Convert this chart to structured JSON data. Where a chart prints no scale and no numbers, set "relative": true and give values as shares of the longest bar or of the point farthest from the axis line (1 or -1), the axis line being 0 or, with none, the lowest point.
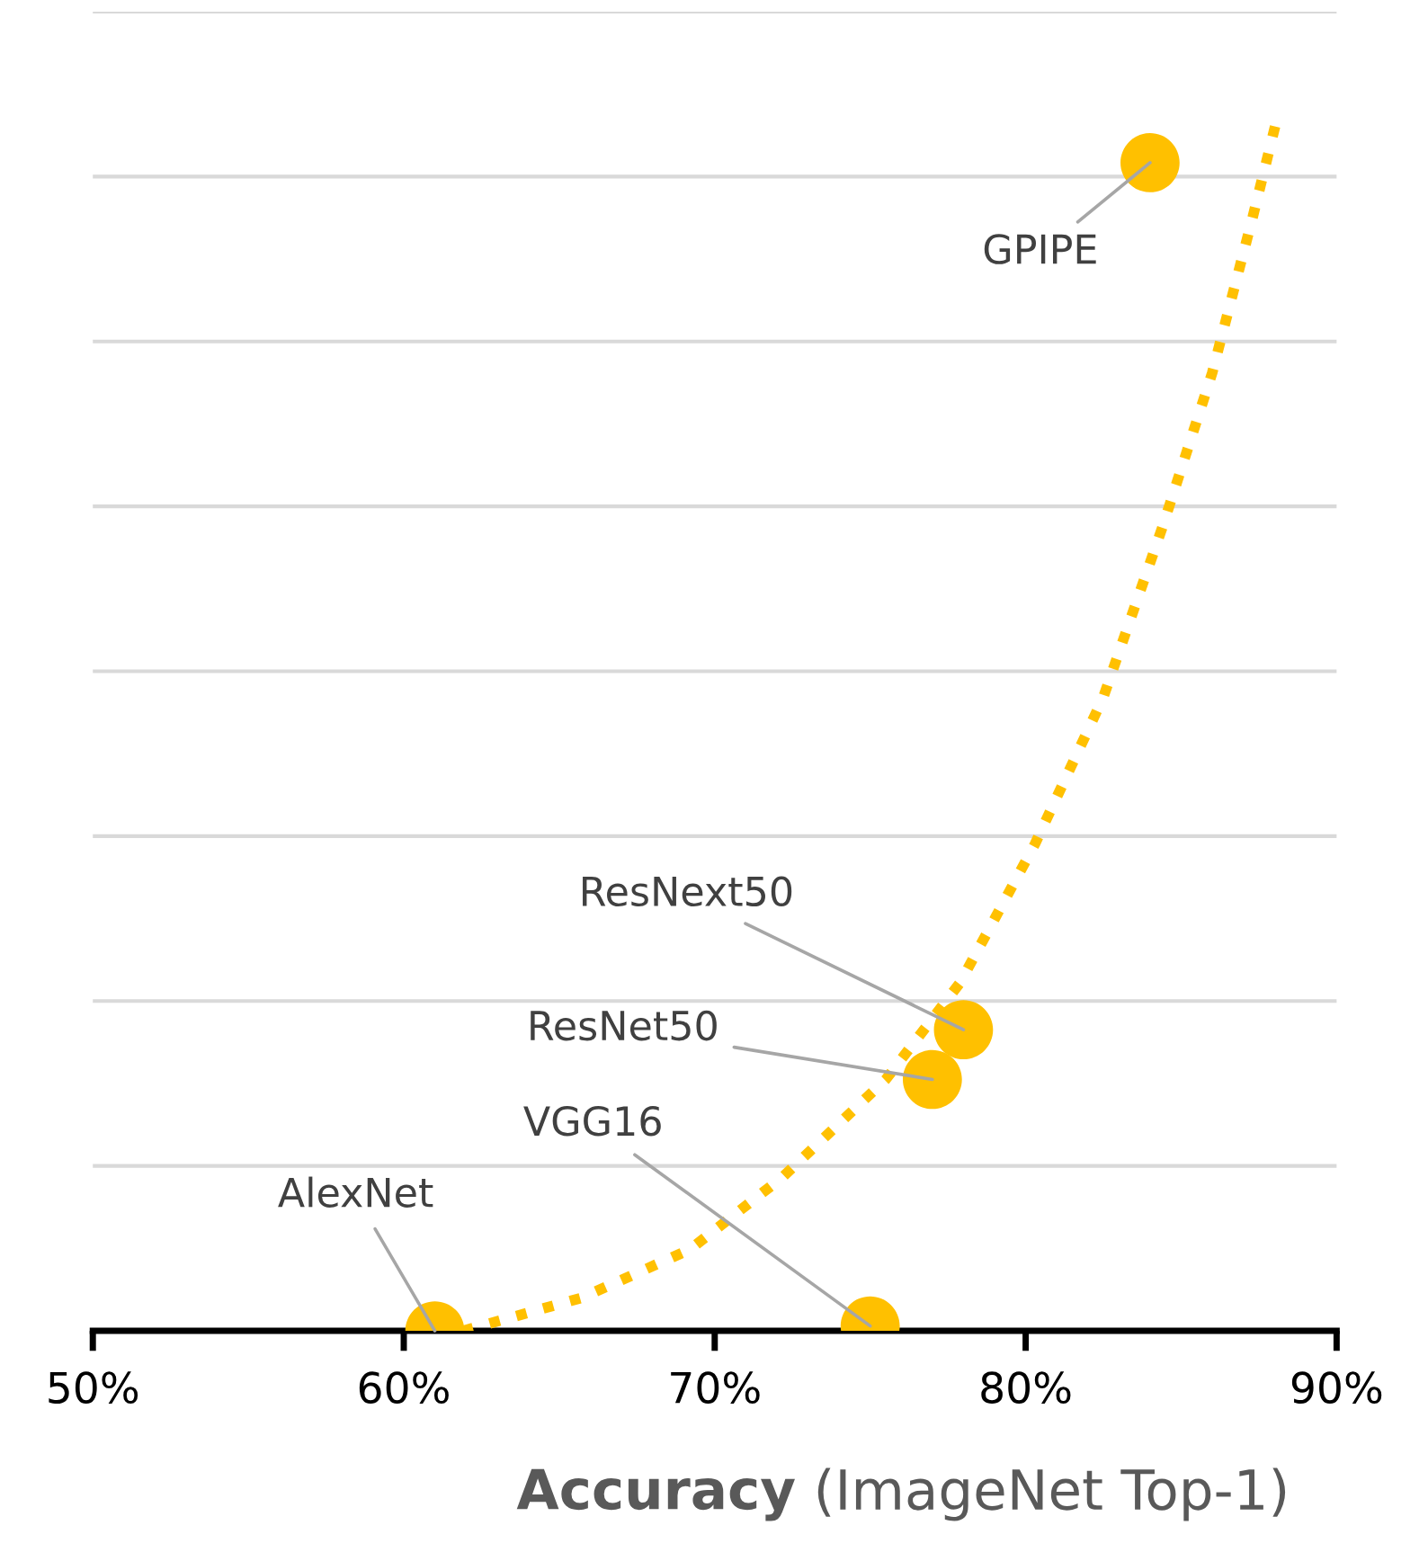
{
  "chart_data": {
    "type": "scatter",
    "xlabel": "Accuracy (ImageNet Top-1)",
    "relative": true,
    "grid": "y",
    "xlim": [
      50,
      90
    ],
    "xticks": [
      {
        "value": 50,
        "label": "50%"
      },
      {
        "value": 60,
        "label": "60%"
      },
      {
        "value": 70,
        "label": "70%"
      },
      {
        "value": 80,
        "label": "80%"
      },
      {
        "value": 90,
        "label": "90%"
      }
    ],
    "series": [
      {
        "color": "#ffc000",
        "marker": "circle",
        "x": [
          61,
          75,
          77,
          78,
          84
        ],
        "values": [
          0,
          0.004,
          0.207,
          0.248,
          0.962
        ]
      },
      {
        "type": "line",
        "color": "#ffc000",
        "line_style": "dotted",
        "x": [
          61.9,
          65.7,
          69.2,
          72.2,
          75.5,
          77.9,
          80.3,
          82.5,
          84.4,
          86.0,
          87.3,
          88.1
        ],
        "values": [
          0,
          0.027,
          0.067,
          0.127,
          0.207,
          0.287,
          0.401,
          0.522,
          0.662,
          0.789,
          0.917,
          1
        ]
      }
    ],
    "annotations": [
      {
        "text": "AlexNet",
        "x": 61,
        "y": 0
      },
      {
        "text": "VGG16",
        "x": 75,
        "y": 0.004
      },
      {
        "text": "ResNet50",
        "x": 77,
        "y": 0.207
      },
      {
        "text": "ResNext50",
        "x": 78,
        "y": 0.248
      },
      {
        "text": "GPIPE",
        "x": 84,
        "y": 0.962
      }
    ]
  }
}
